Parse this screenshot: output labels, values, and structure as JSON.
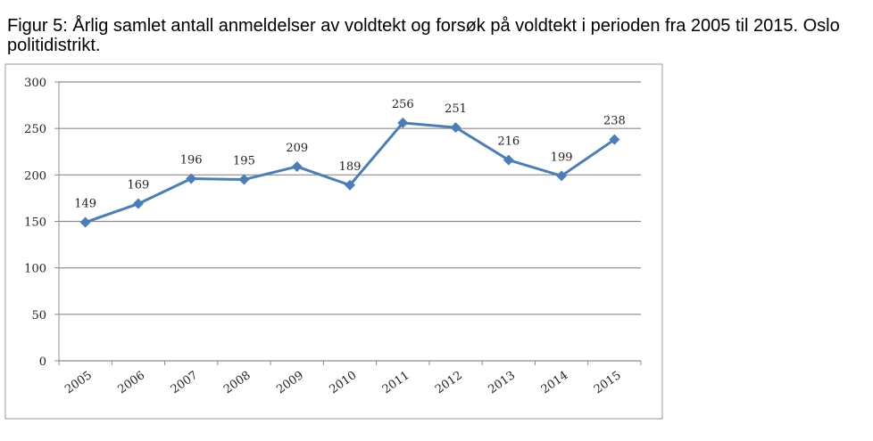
{
  "chart_data": {
    "type": "line",
    "title": "Figur 5: Årlig samlet antall anmeldelser av voldtekt og forsøk på voldtekt i perioden fra 2005 til 2015. Oslo politidistrikt.",
    "categories": [
      "2005",
      "2006",
      "2007",
      "2008",
      "2009",
      "2010",
      "2011",
      "2012",
      "2013",
      "2014",
      "2015"
    ],
    "values": [
      149,
      169,
      196,
      195,
      209,
      189,
      256,
      251,
      216,
      199,
      238
    ],
    "color": "#4a7ebb",
    "ylim": [
      0,
      300
    ],
    "yticks": [
      0,
      50,
      100,
      150,
      200,
      250,
      300
    ],
    "grid": true
  }
}
